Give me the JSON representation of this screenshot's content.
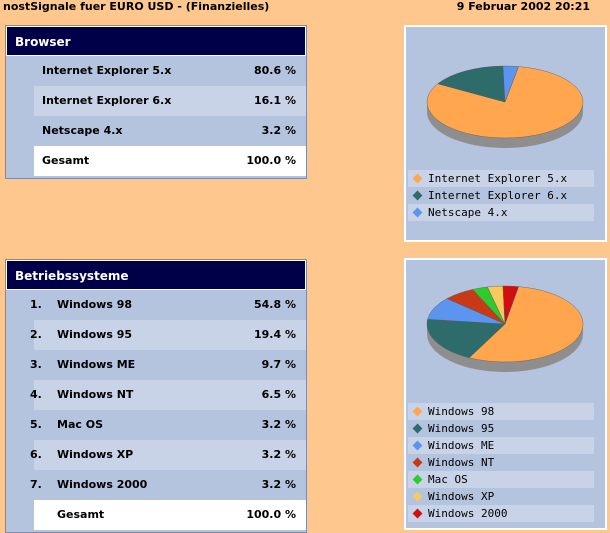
{
  "header": {
    "title": "nostSignale fuer EURO USD - (Finanzielles)",
    "date": "9 Februar 2002 20:21"
  },
  "browser": {
    "heading": "Browser",
    "rows": [
      {
        "label": "Internet Explorer 5.x",
        "pct": "80.6 %"
      },
      {
        "label": "Internet Explorer 6.x",
        "pct": "16.1 %"
      },
      {
        "label": "Netscape 4.x",
        "pct": "3.2 %"
      }
    ],
    "total": {
      "label": "Gesamt",
      "pct": "100.0 %"
    },
    "legend": [
      {
        "label": "Internet Explorer 5.x",
        "color": "#FFA64F"
      },
      {
        "label": "Internet Explorer 6.x",
        "color": "#2E6B6B"
      },
      {
        "label": "Netscape 4.x",
        "color": "#5B95F0"
      }
    ]
  },
  "os": {
    "heading": "Betriebssysteme",
    "rows": [
      {
        "num": "1.",
        "label": "Windows 98",
        "pct": "54.8 %"
      },
      {
        "num": "2.",
        "label": "Windows 95",
        "pct": "19.4 %"
      },
      {
        "num": "3.",
        "label": "Windows ME",
        "pct": "9.7 %"
      },
      {
        "num": "4.",
        "label": "Windows NT",
        "pct": "6.5 %"
      },
      {
        "num": "5.",
        "label": "Mac OS",
        "pct": "3.2 %"
      },
      {
        "num": "6.",
        "label": "Windows XP",
        "pct": "3.2 %"
      },
      {
        "num": "7.",
        "label": "Windows 2000",
        "pct": "3.2 %"
      }
    ],
    "total": {
      "label": "Gesamt",
      "pct": "100.0 %"
    },
    "legend": [
      {
        "label": "Windows 98",
        "color": "#FFA64F"
      },
      {
        "label": "Windows 95",
        "color": "#2E6B6B"
      },
      {
        "label": "Windows ME",
        "color": "#5B95F0"
      },
      {
        "label": "Windows NT",
        "color": "#C83A16"
      },
      {
        "label": "Mac OS",
        "color": "#2DCB2D"
      },
      {
        "label": "Windows XP",
        "color": "#F8C95C"
      },
      {
        "label": "Windows 2000",
        "color": "#D01010"
      }
    ]
  },
  "chart_data": [
    {
      "type": "pie",
      "categories": [
        "Internet Explorer 5.x",
        "Internet Explorer 6.x",
        "Netscape 4.x"
      ],
      "values": [
        80.6,
        16.1,
        3.2
      ],
      "colors": [
        "#FFA64F",
        "#2E6B6B",
        "#5B95F0"
      ]
    },
    {
      "type": "pie",
      "categories": [
        "Windows 98",
        "Windows 95",
        "Windows ME",
        "Windows NT",
        "Mac OS",
        "Windows XP",
        "Windows 2000"
      ],
      "values": [
        54.8,
        19.4,
        9.7,
        6.5,
        3.2,
        3.2,
        3.2
      ],
      "colors": [
        "#FFA64F",
        "#2E6B6B",
        "#5B95F0",
        "#C83A16",
        "#2DCB2D",
        "#F8C95C",
        "#D01010"
      ]
    }
  ]
}
